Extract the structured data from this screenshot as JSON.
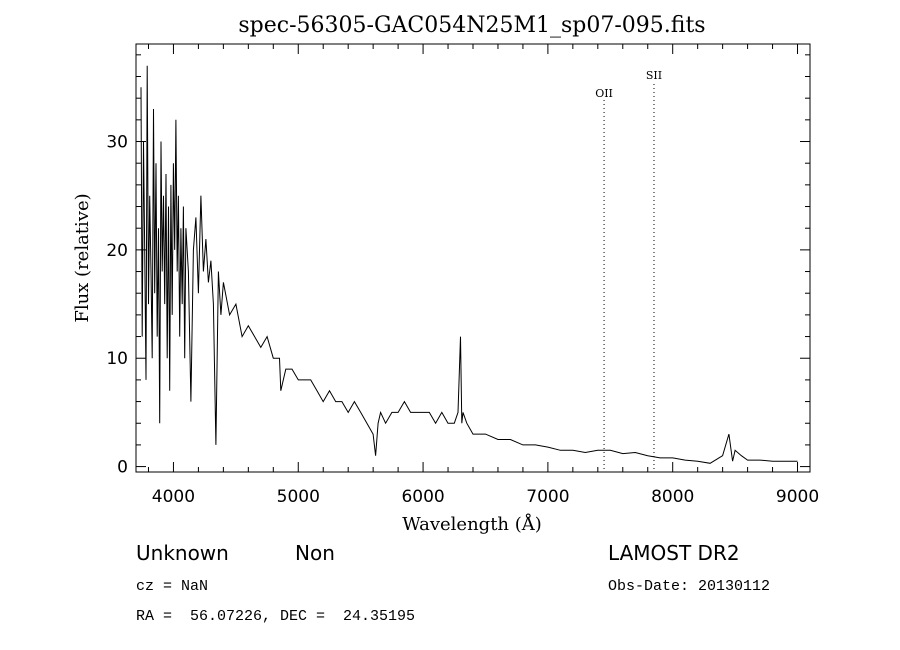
{
  "chart_data": {
    "type": "line",
    "title": "spec-56305-GAC054N25M1_sp07-095.fits",
    "xlabel": "Wavelength (Å)",
    "ylabel": "Flux (relative)",
    "xlim": [
      3700,
      9100
    ],
    "ylim": [
      -0.5,
      39
    ],
    "x_ticks": [
      4000,
      5000,
      6000,
      7000,
      8000,
      9000
    ],
    "y_ticks": [
      0,
      10,
      20,
      30
    ],
    "grid": false,
    "lines": [
      {
        "label": "OII",
        "x": 7450
      },
      {
        "label": "SII",
        "x": 7850
      }
    ],
    "series": [
      {
        "x": [
          3740,
          3750,
          3760,
          3770,
          3780,
          3790,
          3800,
          3810,
          3820,
          3830,
          3840,
          3850,
          3860,
          3870,
          3880,
          3890,
          3900,
          3910,
          3920,
          3930,
          3940,
          3950,
          3960,
          3970,
          3980,
          3990,
          4000,
          4010,
          4020,
          4030,
          4040,
          4050,
          4060,
          4070,
          4080,
          4090,
          4100,
          4120,
          4140,
          4160,
          4180,
          4200,
          4220,
          4240,
          4260,
          4280,
          4300,
          4320,
          4340,
          4360,
          4380,
          4400,
          4450,
          4500,
          4550,
          4600,
          4650,
          4700,
          4750,
          4800,
          4850,
          4860,
          4900,
          4950,
          5000,
          5050,
          5100,
          5150,
          5200,
          5250,
          5300,
          5350,
          5400,
          5450,
          5500,
          5550,
          5600,
          5620,
          5640,
          5660,
          5700,
          5750,
          5800,
          5850,
          5900,
          5950,
          6000,
          6050,
          6100,
          6150,
          6200,
          6250,
          6280,
          6300,
          6310,
          6320,
          6350,
          6400,
          6450,
          6500,
          6600,
          6700,
          6800,
          6900,
          7000,
          7100,
          7200,
          7300,
          7400,
          7500,
          7600,
          7700,
          7800,
          7900,
          8000,
          8100,
          8200,
          8300,
          8400,
          8450,
          8480,
          8500,
          8550,
          8600,
          8700,
          8800,
          8900,
          9000
        ],
        "values": [
          35,
          12,
          30,
          20,
          8,
          37,
          15,
          25,
          18,
          10,
          33,
          16,
          28,
          12,
          22,
          4,
          30,
          18,
          25,
          15,
          27,
          10,
          24,
          7,
          26,
          14,
          28,
          20,
          32,
          18,
          25,
          12,
          22,
          15,
          24,
          10,
          22,
          18,
          6,
          20,
          23,
          16,
          25,
          18,
          21,
          17,
          19,
          15,
          2,
          18,
          14,
          17,
          14,
          15,
          12,
          13,
          12,
          11,
          12,
          10,
          10,
          7,
          9,
          9,
          8,
          8,
          8,
          7,
          6,
          7,
          6,
          6,
          5,
          6,
          5,
          4,
          3,
          1,
          4,
          5,
          4,
          5,
          5,
          6,
          5,
          5,
          5,
          5,
          4,
          5,
          4,
          4,
          5,
          12,
          4,
          5,
          4,
          3,
          3,
          3,
          2.5,
          2.5,
          2,
          2,
          1.8,
          1.5,
          1.5,
          1.3,
          1.5,
          1.5,
          1.2,
          1.3,
          1,
          0.8,
          0.8,
          0.6,
          0.5,
          0.3,
          1,
          3,
          0.5,
          1.5,
          1,
          0.6,
          0.6,
          0.5,
          0.5,
          0.5
        ]
      }
    ]
  },
  "footer": {
    "class_label": "Unknown",
    "subclass_label": "Non",
    "cz_text": "cz = NaN",
    "coords_text": "RA =  56.07226, DEC =  24.35195",
    "survey_label": "LAMOST DR2",
    "obs_date_text": "Obs-Date: 20130112"
  }
}
